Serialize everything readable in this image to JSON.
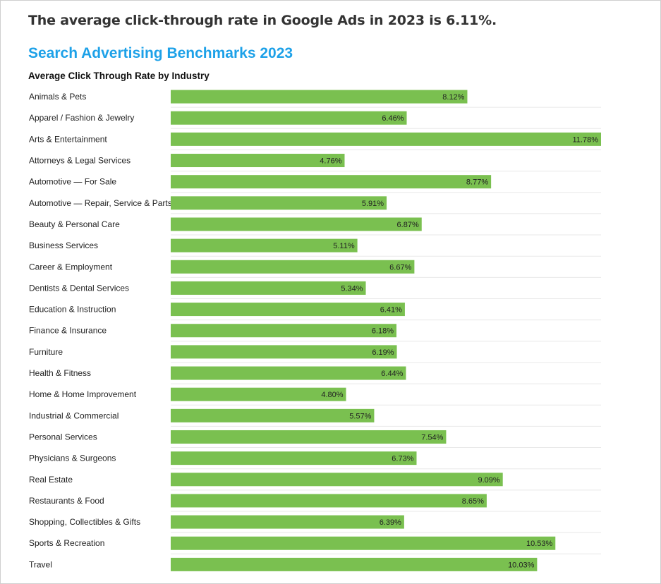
{
  "headline": "The average click-through rate in Google Ads in 2023 is 6.11%.",
  "colors": {
    "bar": "#7ac050",
    "title": "#1da1e8",
    "gridline": "#e8e8e8"
  },
  "chart_data": {
    "type": "bar",
    "orientation": "horizontal",
    "title": "Search Advertising Benchmarks 2023",
    "subtitle": "Average Click Through Rate by Industry",
    "xlabel": "",
    "ylabel": "",
    "unit": "%",
    "xlim": [
      0,
      11.78
    ],
    "grid": false,
    "legend": "none",
    "categories": [
      "Animals & Pets",
      "Apparel / Fashion & Jewelry",
      "Arts & Entertainment",
      "Attorneys & Legal Services",
      "Automotive — For Sale",
      "Automotive — Repair, Service & Parts",
      "Beauty & Personal Care",
      "Business Services",
      "Career & Employment",
      "Dentists & Dental Services",
      "Education & Instruction",
      "Finance & Insurance",
      "Furniture",
      "Health & Fitness",
      "Home & Home Improvement",
      "Industrial & Commercial",
      "Personal Services",
      "Physicians & Surgeons",
      "Real Estate",
      "Restaurants & Food",
      "Shopping, Collectibles & Gifts",
      "Sports & Recreation",
      "Travel"
    ],
    "values": [
      8.12,
      6.46,
      11.78,
      4.76,
      8.77,
      5.91,
      6.87,
      5.11,
      6.67,
      5.34,
      6.41,
      6.18,
      6.19,
      6.44,
      4.8,
      5.57,
      7.54,
      6.73,
      9.09,
      8.65,
      6.39,
      10.53,
      10.03
    ],
    "value_labels": [
      "8.12%",
      "6.46%",
      "11.78%",
      "4.76%",
      "8.77%",
      "5.91%",
      "6.87%",
      "5.11%",
      "6.67%",
      "5.34%",
      "6.41%",
      "6.18%",
      "6.19%",
      "6.44%",
      "4.80%",
      "5.57%",
      "7.54%",
      "6.73%",
      "9.09%",
      "8.65%",
      "6.39%",
      "10.53%",
      "10.03%"
    ]
  }
}
